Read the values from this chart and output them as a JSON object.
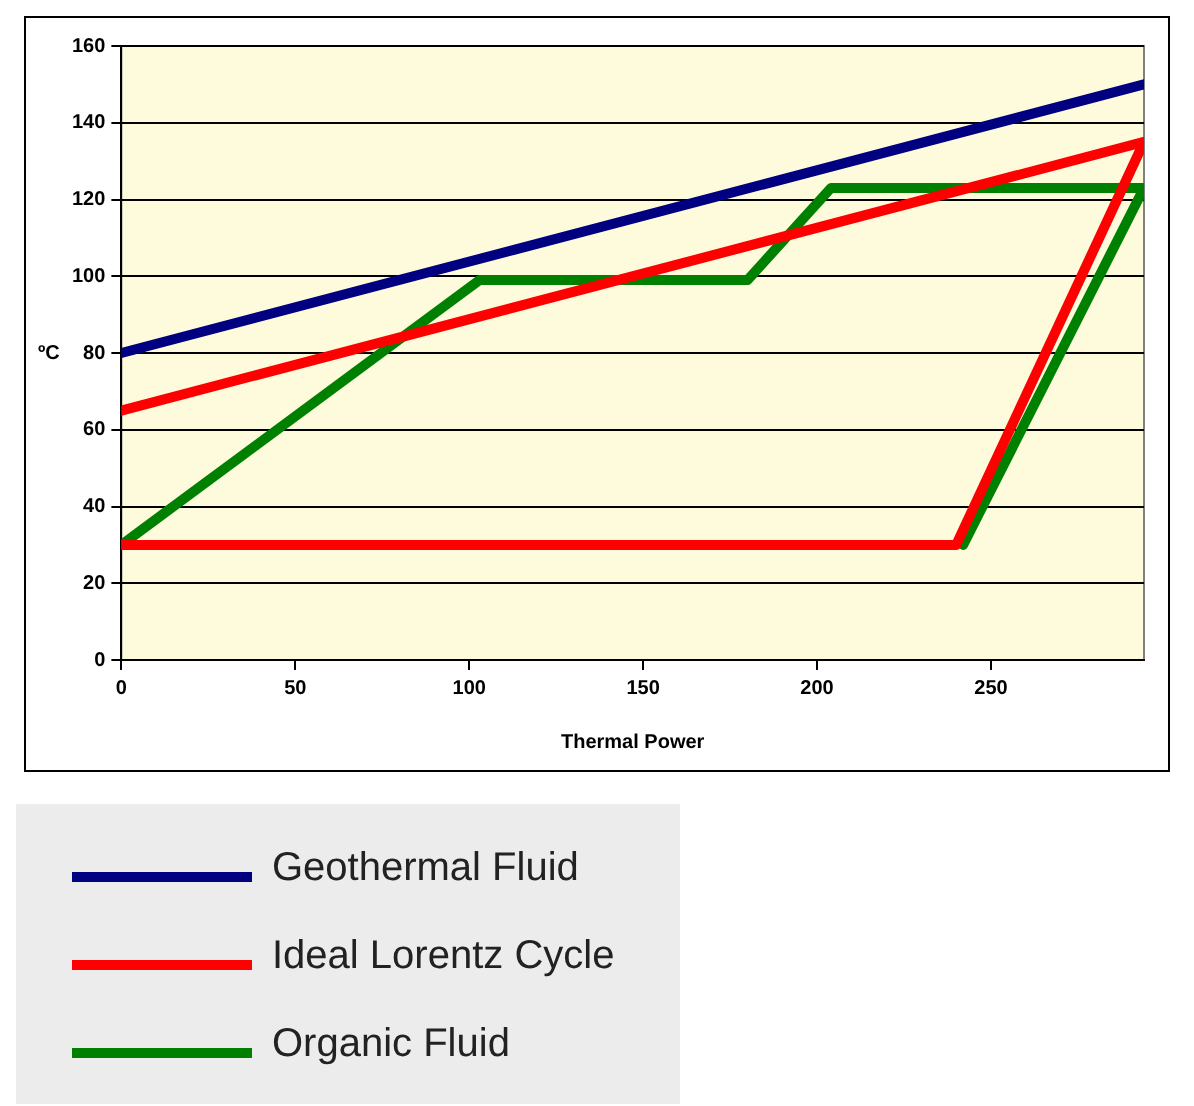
{
  "chart_data": {
    "type": "line",
    "xlabel": "Thermal Power",
    "ylabel": "ºC",
    "xlim": [
      0,
      294
    ],
    "xticks": [
      0,
      50,
      100,
      150,
      200,
      250
    ],
    "ylim": [
      0,
      160
    ],
    "yticks": [
      0,
      20,
      40,
      60,
      80,
      100,
      120,
      140,
      160
    ],
    "grid": "y",
    "legend": "bottom",
    "marker": "none",
    "line_style": "solid",
    "series": [
      {
        "name": "Geothermal Fluid",
        "color": "#000080",
        "x": [
          0,
          294
        ],
        "values": [
          80,
          150
        ]
      },
      {
        "name": "Ideal Lorentz Cycle",
        "color": "#ff0000",
        "x": [
          0,
          240,
          294,
          0
        ],
        "values": [
          30,
          30,
          135,
          65
        ]
      },
      {
        "name": "Organic Fluid",
        "color": "#008000",
        "x": [
          0,
          103,
          180,
          204,
          294,
          242
        ],
        "values": [
          30,
          99,
          99,
          123,
          123,
          30
        ]
      }
    ]
  }
}
